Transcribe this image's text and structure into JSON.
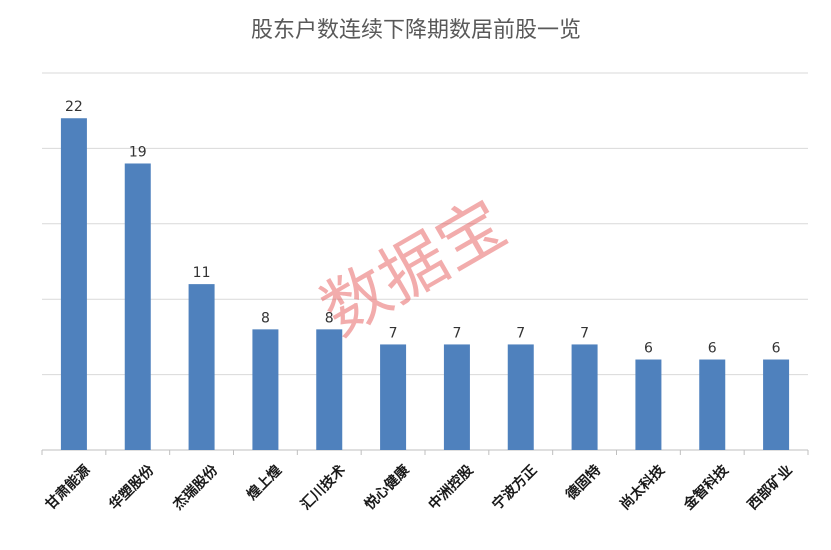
{
  "chart_data": {
    "type": "bar",
    "title": "股东户数连续下降期数居前股一览",
    "categories": [
      "甘肃能源",
      "华塑股份",
      "杰瑞股份",
      "煌上煌",
      "汇川技术",
      "悦心健康",
      "中洲控股",
      "宁波方正",
      "德固特",
      "尚太科技",
      "金智科技",
      "西部矿业"
    ],
    "values": [
      22,
      19,
      11,
      8,
      8,
      7,
      7,
      7,
      7,
      6,
      6,
      6
    ],
    "ylim": [
      0,
      25
    ],
    "grid": true,
    "colors": {
      "bar": "#4f81bd"
    }
  },
  "watermark": "数据宝"
}
